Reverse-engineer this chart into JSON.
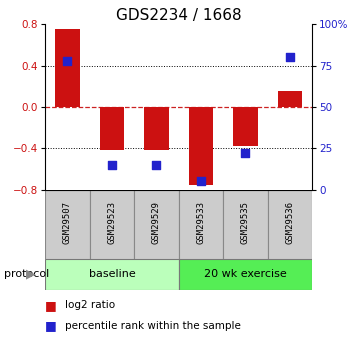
{
  "title": "GDS2234 / 1668",
  "samples": [
    "GSM29507",
    "GSM29523",
    "GSM29529",
    "GSM29533",
    "GSM29535",
    "GSM29536"
  ],
  "log2_ratio": [
    0.75,
    -0.42,
    -0.42,
    -0.75,
    -0.38,
    0.15
  ],
  "percentile_rank": [
    78,
    15,
    15,
    5,
    22,
    80
  ],
  "bar_color": "#cc1111",
  "dot_color": "#2222cc",
  "ylim_left": [
    -0.8,
    0.8
  ],
  "ylim_right": [
    0,
    100
  ],
  "yticks_left": [
    -0.8,
    -0.4,
    0,
    0.4,
    0.8
  ],
  "yticks_right": [
    0,
    25,
    50,
    75,
    100
  ],
  "ytick_labels_right": [
    "0",
    "25",
    "50",
    "75",
    "100%"
  ],
  "groups": [
    {
      "label": "baseline",
      "start": 0,
      "end": 3,
      "color": "#bbffbb"
    },
    {
      "label": "20 wk exercise",
      "start": 3,
      "end": 6,
      "color": "#55ee55"
    }
  ],
  "protocol_label": "protocol",
  "legend_red_label": "log2 ratio",
  "legend_blue_label": "percentile rank within the sample",
  "bar_width": 0.55,
  "dot_size": 40,
  "zero_line_color": "#cc2222",
  "title_fontsize": 11,
  "tick_fontsize": 7.5,
  "sample_fontsize": 6.5,
  "group_fontsize": 8,
  "legend_fontsize": 7.5,
  "protocol_fontsize": 8
}
